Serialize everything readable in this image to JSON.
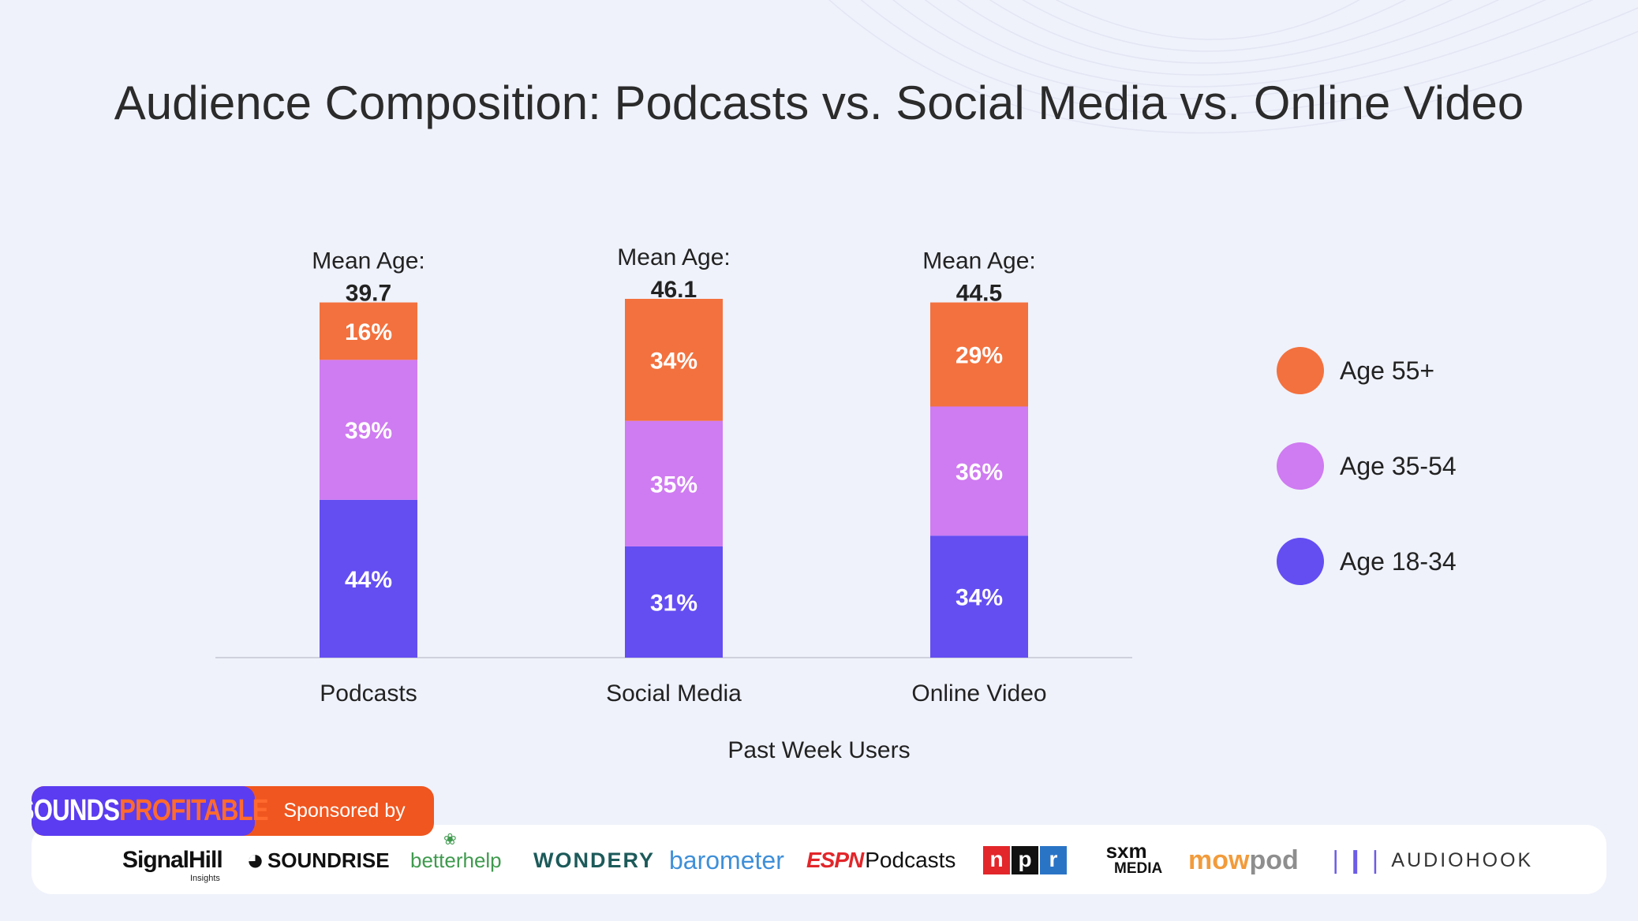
{
  "title": "Audience Composition: Podcasts vs. Social Media vs. Online Video",
  "chart_data": {
    "type": "bar",
    "stacked": true,
    "orientation": "vertical",
    "categories": [
      "Podcasts",
      "Social Media",
      "Online Video"
    ],
    "series": [
      {
        "name": "Age 18-34",
        "values": [
          44,
          31,
          34
        ],
        "labels": [
          "44%",
          "31%",
          "34%"
        ],
        "color": "#644ef2"
      },
      {
        "name": "Age 35-54",
        "values": [
          39,
          35,
          36
        ],
        "labels": [
          "39%",
          "35%",
          "36%"
        ],
        "color": "#cf7bf1"
      },
      {
        "name": "Age 55+",
        "values": [
          16,
          34,
          29
        ],
        "labels": [
          "16%",
          "34%",
          "29%"
        ],
        "color": "#f3713e"
      }
    ],
    "mean_age_label": "Mean Age:",
    "mean_ages": [
      "39.7",
      "46.1",
      "44.5"
    ],
    "xlabel": "Past Week Users",
    "ylabel": "",
    "ylim": [
      0,
      100
    ],
    "legend_position": "right",
    "grid": false
  },
  "legend_order": [
    "Age 55+",
    "Age 35-54",
    "Age 18-34"
  ],
  "legend": [
    {
      "label": "Age 55+",
      "color": "#f3713e"
    },
    {
      "label": "Age 35-54",
      "color": "#cf7bf1"
    },
    {
      "label": "Age 18-34",
      "color": "#644ef2"
    }
  ],
  "footer": {
    "brand_sounds": "SOUNDS",
    "brand_profitable": "PROFITABLE",
    "sponsored": "Sponsored by",
    "sponsors": {
      "signalhill": "SignalHill",
      "signalhill_sub": "Insights",
      "soundrise": "SOUNDRISE",
      "betterhelp": "betterhelp",
      "wondery": "WONDERY",
      "barometer": "barometer",
      "espn": "ESPN",
      "espn_podcasts": "Podcasts",
      "npr_n": "n",
      "npr_p": "p",
      "npr_r": "r",
      "sxm": "sxm",
      "sxm_media": "MEDIA",
      "mowpod_mow": "mow",
      "mowpod_pod": "pod",
      "audiohook": "AUDIOHOOK"
    },
    "colors": {
      "brand_left": "#5b3cf0",
      "brand_right": "#f0561f",
      "npr_n": "#e2262a",
      "npr_p": "#111111",
      "npr_r": "#2a74c6"
    }
  }
}
